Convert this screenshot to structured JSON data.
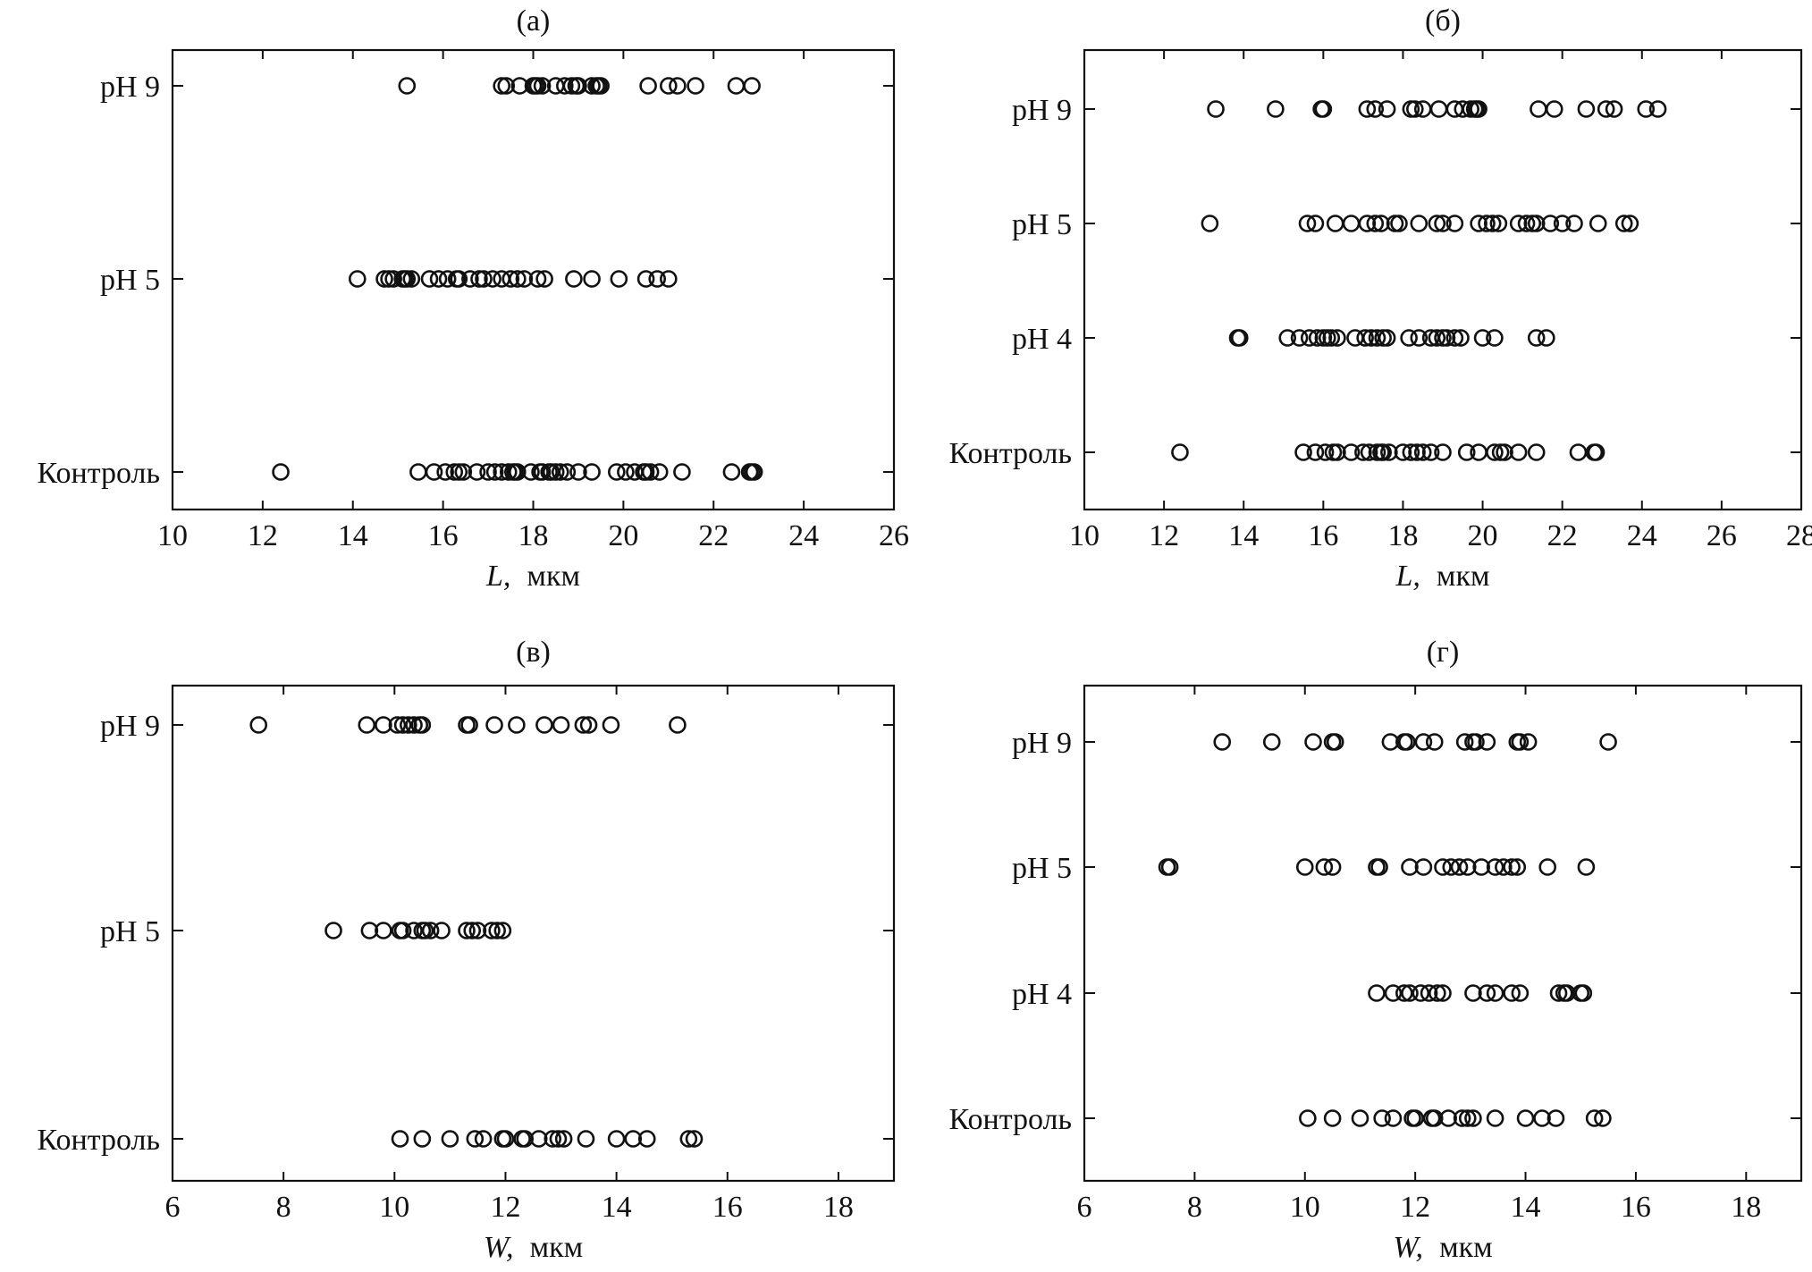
{
  "chart_data": [
    {
      "type": "scatter",
      "title": "(а)",
      "xlabel_var": "L,",
      "xlabel_unit": "мкм",
      "xlim": [
        10,
        26
      ],
      "xticks": [
        "10",
        "12",
        "14",
        "16",
        "18",
        "20",
        "22",
        "24",
        "26"
      ],
      "categories": [
        "Контроль",
        "pH 5",
        "pH 9"
      ],
      "grid": false,
      "series": [
        {
          "category": "pH 9",
          "values": [
            15.2,
            17.3,
            17.4,
            17.7,
            18.0,
            18.05,
            18.1,
            18.2,
            18.5,
            18.7,
            18.85,
            18.95,
            19.0,
            19.3,
            19.4,
            19.45,
            19.5,
            20.55,
            21.0,
            21.2,
            21.6,
            22.5,
            22.85
          ]
        },
        {
          "category": "pH 5",
          "values": [
            14.1,
            14.7,
            14.8,
            14.9,
            15.1,
            15.15,
            15.2,
            15.3,
            15.7,
            15.9,
            16.1,
            16.3,
            16.35,
            16.6,
            16.8,
            16.9,
            17.1,
            17.3,
            17.5,
            17.65,
            17.8,
            18.1,
            18.25,
            18.9,
            19.3,
            19.9,
            20.5,
            20.75,
            21.0
          ]
        },
        {
          "category": "Контроль",
          "values": [
            12.4,
            15.45,
            15.8,
            16.05,
            16.25,
            16.35,
            16.45,
            16.75,
            17.0,
            17.15,
            17.3,
            17.45,
            17.55,
            17.6,
            17.65,
            17.95,
            18.15,
            18.2,
            18.35,
            18.4,
            18.5,
            18.6,
            18.75,
            19.0,
            19.3,
            19.85,
            20.05,
            20.25,
            20.45,
            20.5,
            20.6,
            20.8,
            21.3,
            22.4,
            22.8,
            22.85,
            22.9
          ]
        }
      ]
    },
    {
      "type": "scatter",
      "title": "(б)",
      "xlabel_var": "L,",
      "xlabel_unit": "мкм",
      "xlim": [
        10,
        28
      ],
      "xticks": [
        "10",
        "12",
        "14",
        "16",
        "18",
        "20",
        "22",
        "24",
        "26",
        "28"
      ],
      "categories": [
        "Контроль",
        "pH 4",
        "pH 5",
        "pH 9"
      ],
      "grid": false,
      "series": [
        {
          "category": "pH 9",
          "values": [
            13.3,
            14.8,
            15.95,
            16.0,
            17.1,
            17.3,
            17.6,
            18.2,
            18.3,
            18.5,
            18.9,
            19.3,
            19.5,
            19.7,
            19.8,
            19.85,
            19.9,
            21.4,
            21.8,
            22.6,
            23.1,
            23.3,
            24.1,
            24.4
          ]
        },
        {
          "category": "pH 5",
          "values": [
            13.15,
            15.6,
            15.8,
            16.3,
            16.7,
            17.1,
            17.3,
            17.45,
            17.8,
            17.9,
            18.4,
            18.85,
            19.0,
            19.3,
            19.9,
            20.1,
            20.25,
            20.4,
            20.9,
            21.1,
            21.25,
            21.35,
            21.7,
            22.0,
            22.3,
            22.9,
            23.55,
            23.7
          ]
        },
        {
          "category": "pH 4",
          "values": [
            13.85,
            13.9,
            15.1,
            15.4,
            15.65,
            15.85,
            16.0,
            16.1,
            16.2,
            16.35,
            16.8,
            17.05,
            17.2,
            17.35,
            17.5,
            17.6,
            18.15,
            18.4,
            18.7,
            18.85,
            19.0,
            19.1,
            19.3,
            19.45,
            20.0,
            20.3,
            21.35,
            21.6
          ]
        },
        {
          "category": "Контроль",
          "values": [
            12.4,
            15.5,
            15.8,
            16.05,
            16.25,
            16.35,
            16.7,
            17.0,
            17.15,
            17.35,
            17.45,
            17.5,
            17.65,
            18.0,
            18.2,
            18.35,
            18.5,
            18.7,
            19.0,
            19.6,
            19.9,
            20.3,
            20.45,
            20.55,
            20.9,
            21.35,
            22.4,
            22.8,
            22.85
          ]
        }
      ]
    },
    {
      "type": "scatter",
      "title": "(в)",
      "xlabel_var": "W,",
      "xlabel_unit": "мкм",
      "xlim": [
        6,
        19
      ],
      "xticks": [
        "6",
        "8",
        "10",
        "12",
        "14",
        "16",
        "18"
      ],
      "categories": [
        "Контроль",
        "pH 5",
        "pH 9"
      ],
      "grid": false,
      "series": [
        {
          "category": "pH 9",
          "values": [
            7.55,
            9.5,
            9.8,
            10.05,
            10.15,
            10.25,
            10.35,
            10.45,
            10.5,
            11.3,
            11.35,
            11.8,
            12.2,
            12.7,
            13.0,
            13.4,
            13.5,
            13.9,
            15.1
          ]
        },
        {
          "category": "pH 5",
          "values": [
            8.9,
            9.55,
            9.8,
            10.1,
            10.15,
            10.35,
            10.5,
            10.55,
            10.65,
            10.85,
            11.3,
            11.4,
            11.5,
            11.75,
            11.85,
            11.95
          ]
        },
        {
          "category": "Контроль",
          "values": [
            10.1,
            10.5,
            11.0,
            11.45,
            11.6,
            11.95,
            12.0,
            12.3,
            12.35,
            12.6,
            12.85,
            12.95,
            13.05,
            13.45,
            14.0,
            14.3,
            14.55,
            15.3,
            15.4
          ]
        }
      ]
    },
    {
      "type": "scatter",
      "title": "(г)",
      "xlabel_var": "W,",
      "xlabel_unit": "мкм",
      "xlim": [
        6,
        19
      ],
      "xticks": [
        "6",
        "8",
        "10",
        "12",
        "14",
        "16",
        "18"
      ],
      "categories": [
        "Контроль",
        "pH 4",
        "pH 5",
        "pH 9"
      ],
      "grid": false,
      "series": [
        {
          "category": "pH 9",
          "values": [
            8.5,
            9.4,
            10.15,
            10.5,
            10.55,
            11.55,
            11.8,
            11.85,
            12.15,
            12.35,
            12.9,
            13.05,
            13.1,
            13.3,
            13.85,
            13.9,
            14.05,
            15.5
          ]
        },
        {
          "category": "pH 5",
          "values": [
            7.5,
            7.55,
            10.0,
            10.35,
            10.5,
            11.3,
            11.35,
            11.9,
            12.15,
            12.5,
            12.65,
            12.8,
            12.95,
            13.2,
            13.45,
            13.6,
            13.75,
            13.85,
            14.4,
            15.1
          ]
        },
        {
          "category": "pH 4",
          "values": [
            11.3,
            11.6,
            11.8,
            11.9,
            12.1,
            12.25,
            12.4,
            12.5,
            13.05,
            13.3,
            13.45,
            13.75,
            13.9,
            14.6,
            14.7,
            14.75,
            15.0,
            15.05
          ]
        },
        {
          "category": "Контроль",
          "values": [
            10.05,
            10.5,
            11.0,
            11.4,
            11.6,
            11.95,
            12.0,
            12.3,
            12.35,
            12.6,
            12.85,
            12.95,
            13.05,
            13.45,
            14.0,
            14.3,
            14.55,
            15.25,
            15.4
          ]
        }
      ]
    }
  ]
}
